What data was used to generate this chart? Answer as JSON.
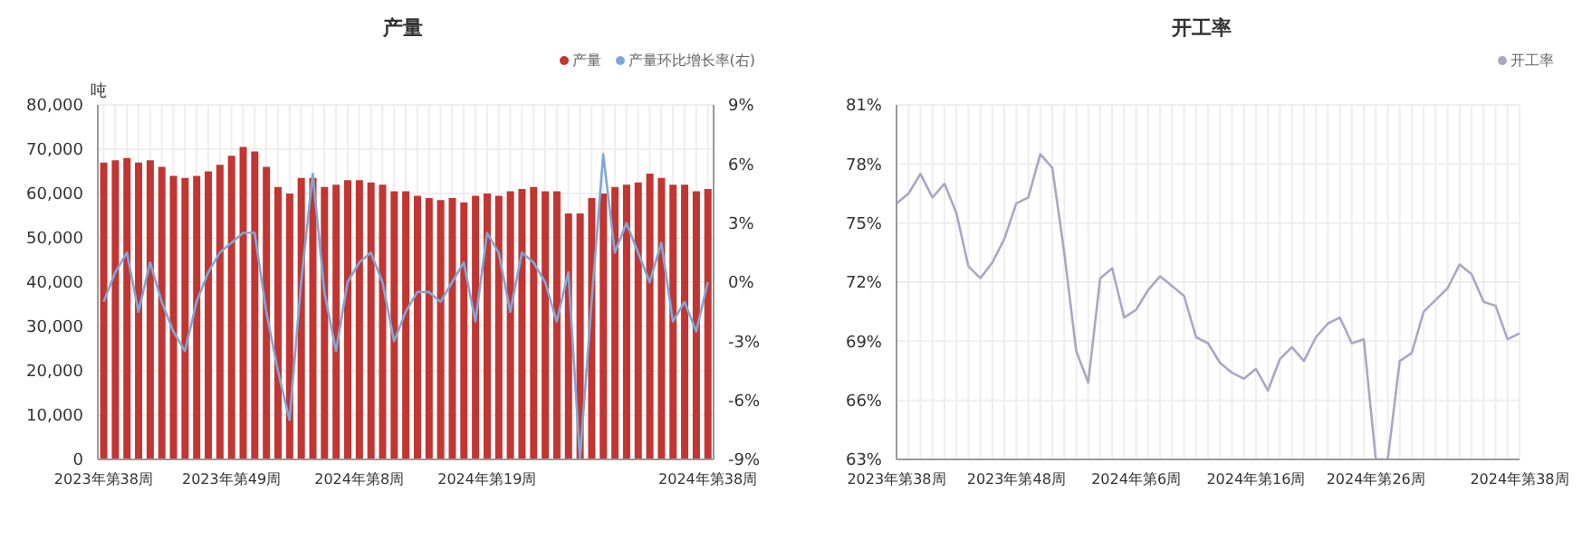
{
  "chart_data": [
    {
      "type": "bar",
      "title": "产量",
      "ylabel": "吨",
      "legend": "top right",
      "grid": true,
      "marker": "none",
      "categories": [
        "2023年第38周",
        null,
        null,
        null,
        null,
        null,
        null,
        null,
        null,
        null,
        null,
        "2023年第49周",
        null,
        null,
        null,
        null,
        null,
        null,
        null,
        null,
        null,
        null,
        "2024年第8周",
        null,
        null,
        null,
        null,
        null,
        null,
        null,
        null,
        null,
        null,
        "2024年第19周",
        null,
        null,
        null,
        null,
        null,
        null,
        null,
        null,
        null,
        null,
        null,
        null,
        null,
        null,
        null,
        null,
        null,
        null,
        "2024年第38周"
      ],
      "ylim": [
        0,
        80000
      ],
      "yticks": [
        {
          "value": 0,
          "label": "0"
        },
        {
          "value": 10000,
          "label": "10,000"
        },
        {
          "value": 20000,
          "label": "20,000"
        },
        {
          "value": 30000,
          "label": "30,000"
        },
        {
          "value": 40000,
          "label": "40,000"
        },
        {
          "value": 50000,
          "label": "50,000"
        },
        {
          "value": 60000,
          "label": "60,000"
        },
        {
          "value": 70000,
          "label": "70,000"
        },
        {
          "value": 80000,
          "label": "80,000"
        }
      ],
      "y2lim": [
        -9,
        9
      ],
      "y2ticks": [
        {
          "value": -9,
          "label": "-9%"
        },
        {
          "value": -6,
          "label": "-6%"
        },
        {
          "value": -3,
          "label": "-3%"
        },
        {
          "value": 0,
          "label": "0%"
        },
        {
          "value": 3,
          "label": "3%"
        },
        {
          "value": 6,
          "label": "6%"
        },
        {
          "value": 9,
          "label": "9%"
        }
      ],
      "series": [
        {
          "name": "产量",
          "color": "#c23531",
          "values": [
            67000,
            67500,
            68000,
            67000,
            67500,
            66000,
            64000,
            63500,
            64000,
            65000,
            66500,
            68500,
            70500,
            69500,
            66000,
            61500,
            60000,
            63500,
            63500,
            61500,
            62000,
            63000,
            63000,
            62500,
            62000,
            60500,
            60500,
            59500,
            59000,
            58500,
            59000,
            58000,
            59500,
            60000,
            59500,
            60500,
            61000,
            61500,
            60500,
            60500,
            55500,
            55500,
            59000,
            60000,
            61500,
            62000,
            62500,
            64500,
            63500,
            62000,
            62000,
            60500,
            61000
          ]
        },
        {
          "name": "产量环比增长率(右)",
          "type": "line",
          "axis": "y2",
          "color": "#7fa7d6",
          "values": [
            -1,
            0.5,
            1.5,
            -1.5,
            1,
            -1,
            -2.5,
            -3.5,
            -1,
            0.5,
            1.5,
            2,
            2.5,
            2.5,
            -1.5,
            -4.5,
            -7,
            0,
            5.5,
            -0.5,
            -3.5,
            0,
            1,
            1.5,
            0,
            -3,
            -1.5,
            -0.5,
            -0.5,
            -1,
            0,
            1,
            -2,
            2.5,
            1.5,
            -1.5,
            1.5,
            1,
            0,
            -2,
            0.5,
            -9,
            -1,
            6.5,
            1.5,
            3,
            1.5,
            0,
            2,
            -2,
            -1,
            -2.5,
            0
          ]
        }
      ]
    },
    {
      "type": "line",
      "title": "开工率",
      "legend": "top right",
      "grid": true,
      "marker": "none",
      "categories": [
        "2023年第38周",
        null,
        null,
        null,
        null,
        null,
        null,
        null,
        null,
        null,
        "2023年第48周",
        null,
        null,
        null,
        null,
        null,
        null,
        null,
        null,
        null,
        "2024年第6周",
        null,
        null,
        null,
        null,
        null,
        null,
        null,
        null,
        null,
        "2024年第16周",
        null,
        null,
        null,
        null,
        null,
        null,
        null,
        null,
        null,
        "2024年第26周",
        null,
        null,
        null,
        null,
        null,
        null,
        null,
        null,
        null,
        null,
        null,
        "2024年第38周"
      ],
      "ylim": [
        63,
        81
      ],
      "yticks": [
        {
          "value": 63,
          "label": "63%"
        },
        {
          "value": 66,
          "label": "66%"
        },
        {
          "value": 69,
          "label": "69%"
        },
        {
          "value": 72,
          "label": "72%"
        },
        {
          "value": 75,
          "label": "75%"
        },
        {
          "value": 78,
          "label": "78%"
        },
        {
          "value": 81,
          "label": "81%"
        }
      ],
      "series": [
        {
          "name": "开工率",
          "color": "#a9a7c4",
          "values": [
            76.0,
            76.5,
            77.5,
            76.3,
            77.0,
            75.5,
            72.8,
            72.2,
            73.0,
            74.2,
            76.0,
            76.3,
            78.5,
            77.8,
            73.5,
            68.5,
            66.9,
            72.2,
            72.7,
            70.2,
            70.6,
            71.6,
            72.3,
            71.8,
            71.3,
            69.2,
            68.9,
            67.9,
            67.4,
            67.1,
            67.6,
            66.5,
            68.1,
            68.7,
            68.0,
            69.2,
            69.9,
            70.2,
            68.9,
            69.1,
            63.0,
            63.0,
            68.0,
            68.4,
            70.5,
            71.1,
            71.7,
            72.9,
            72.4,
            71.0,
            70.8,
            69.1,
            69.4
          ]
        }
      ]
    }
  ]
}
